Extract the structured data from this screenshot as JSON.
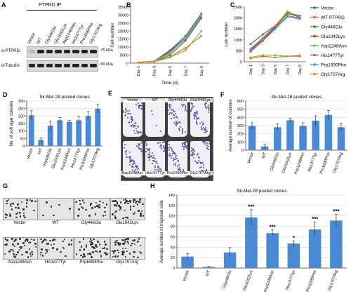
{
  "panels": {
    "A": {
      "letter": "A",
      "header": "PTPRD IP",
      "lanes": [
        "Vector",
        "WT",
        "Gly446Glu",
        "Glu1042Lys",
        "Asp1248Asn",
        "His1477Tyr",
        "Pro1690Phe",
        "Gly1707Arg"
      ],
      "row1_label": "α-PTPRD-",
      "row1_marker": "- 75 kDa",
      "row2_label": "α-Tubulin-",
      "row2_marker": "- 50 kDa"
    },
    "B": {
      "letter": "B"
    },
    "C": {
      "letter": "C"
    },
    "D": {
      "letter": "D"
    },
    "E": {
      "letter": "E",
      "top_labels": [
        "Vector",
        "WT",
        "Gly446Glu",
        "Glu1042Lys"
      ],
      "bottom_labels": [
        "Asp1248Asn",
        "His1477Tyr",
        "Pro1690Phe",
        "Gly1707Arg"
      ]
    },
    "F": {
      "letter": "F"
    },
    "G": {
      "letter": "G",
      "labels": [
        "Vector",
        "WT",
        "Gly446Glu",
        "Glu1042Lys",
        "Asp1248Asn",
        "His1477Tyr",
        "Prp1690Phe",
        "Gly1707Arg"
      ]
    },
    "H": {
      "letter": "H"
    }
  },
  "legend": {
    "entries": [
      {
        "name": "Vector",
        "color": "#1f6fb5"
      },
      {
        "name": "WT PTPRD",
        "color": "#e8641b"
      },
      {
        "name": "Gly446Glu",
        "color": "#2c8a3a"
      },
      {
        "name": "Glu1042Lys",
        "color": "#d62728"
      },
      {
        "name": "Asp1248Asn",
        "color": "#7fb13c"
      },
      {
        "name": "His1477Tyr",
        "color": "#8e57b5"
      },
      {
        "name": "Prp1690Phe",
        "color": "#23a9c6"
      },
      {
        "name": "Gly1707Arg",
        "color": "#f08a24"
      }
    ]
  },
  "chart_data": [
    {
      "id": "B",
      "type": "line",
      "xlabel": "Time (d)",
      "ylabel": "Cell number",
      "categories": [
        "Day 1",
        "Day 3",
        "Day 5",
        "Day 7",
        "Day 9"
      ],
      "ylim": [
        0,
        35000
      ],
      "yticks": [
        0,
        5000,
        10000,
        15000,
        20000,
        25000,
        30000,
        35000
      ],
      "series": [
        {
          "color": "#1f6fb5",
          "values": [
            500,
            1200,
            8000,
            17000,
            31000
          ]
        },
        {
          "color": "#e8641b",
          "values": [
            500,
            900,
            4000,
            9500,
            17000
          ]
        },
        {
          "color": "#2c8a3a",
          "values": [
            500,
            1000,
            5000,
            14000,
            28000
          ]
        },
        {
          "color": "#d62728",
          "values": [
            500,
            1100,
            7500,
            16000,
            30000
          ]
        },
        {
          "color": "#7fb13c",
          "values": [
            500,
            900,
            3500,
            8000,
            20000
          ]
        },
        {
          "color": "#8e57b5",
          "values": [
            500,
            1000,
            6500,
            15000,
            29000
          ]
        },
        {
          "color": "#23a9c6",
          "values": [
            500,
            1100,
            7000,
            16000,
            30500
          ]
        },
        {
          "color": "#f08a24",
          "values": [
            500,
            1000,
            6000,
            15500,
            29500
          ]
        }
      ]
    },
    {
      "id": "C",
      "type": "line",
      "ylabel": "Cell number",
      "categories": [
        "Day 1",
        "Day 3",
        "Day 5",
        "Day 7",
        "Day 9"
      ],
      "ylim": [
        0,
        2500
      ],
      "yticks": [
        0,
        500,
        1000,
        1500,
        2000,
        2500
      ],
      "series": [
        {
          "color": "#1f6fb5",
          "values": [
            800,
            1250,
            1650,
            2250,
            2100
          ]
        },
        {
          "color": "#e8641b",
          "values": [
            150,
            250,
            200,
            250,
            250
          ]
        },
        {
          "color": "#2c8a3a",
          "values": [
            500,
            1000,
            1550,
            2200,
            2050
          ]
        },
        {
          "color": "#d62728",
          "values": [
            550,
            1050,
            1600,
            2300,
            2000
          ]
        },
        {
          "color": "#7fb13c",
          "values": [
            200,
            300,
            300,
            250,
            300
          ]
        },
        {
          "color": "#8e57b5",
          "values": [
            450,
            950,
            1500,
            2100,
            2000
          ]
        },
        {
          "color": "#23a9c6",
          "values": [
            500,
            1000,
            1500,
            2050,
            1950
          ]
        },
        {
          "color": "#f08a24",
          "values": [
            600,
            1100,
            1650,
            2300,
            2050
          ]
        }
      ]
    },
    {
      "id": "D",
      "type": "bar",
      "title": "Sk-Mel-28 pooled clones",
      "ylabel": "No. of soft agar colonies",
      "categories": [
        "Vector",
        "WT",
        "Gly446Glu",
        "Glu1042Lys",
        "Asp1248Asn",
        "His1477Tyr",
        "Pro1690Phe",
        "Gly1707Arg"
      ],
      "values": [
        205,
        40,
        135,
        172,
        160,
        172,
        200,
        248
      ],
      "errors": [
        30,
        15,
        30,
        18,
        12,
        25,
        30,
        30
      ],
      "ylim": [
        0,
        300
      ],
      "yticks": [
        0,
        50,
        100,
        150,
        200,
        250,
        300
      ],
      "color": "#4a8ad4"
    },
    {
      "id": "F",
      "type": "bar",
      "title": "Sk-Mel-28 pooled clones",
      "ylabel": "Average number of colonies",
      "categories": [
        "Vector",
        "WT",
        "Gly446Glu",
        "Glu1042Lys",
        "Asp1248Asn",
        "His1477Tyr",
        "Pro1690Phe",
        "Gly1707Arg"
      ],
      "values": [
        295,
        45,
        280,
        365,
        295,
        360,
        430,
        280
      ],
      "errors": [
        40,
        25,
        40,
        25,
        40,
        60,
        55,
        45
      ],
      "ylim": [
        0,
        600
      ],
      "yticks": [
        0,
        100,
        200,
        300,
        400,
        500,
        600
      ],
      "color": "#4a8ad4"
    },
    {
      "id": "H",
      "type": "bar",
      "title": "Sk-Mel-28 pooled clones",
      "ylabel": "Average number of migrated cells",
      "categories": [
        "Vector",
        "WT",
        "Gly446Glu",
        "Glu1042Lys",
        "Asp1248Asn",
        "His1477Tyr",
        "Pro1690Phe",
        "Gly1707Arg"
      ],
      "values": [
        22,
        2,
        30,
        97,
        67,
        47,
        74,
        91
      ],
      "errors": [
        6,
        1,
        9,
        15,
        6,
        5,
        14,
        12
      ],
      "stars": [
        "",
        "",
        "",
        "***",
        "***",
        "*",
        "***",
        "***"
      ],
      "ylim": [
        0,
        140
      ],
      "yticks": [
        0,
        20,
        40,
        60,
        80,
        100,
        120,
        140
      ],
      "color": "#4a8ad4"
    }
  ]
}
